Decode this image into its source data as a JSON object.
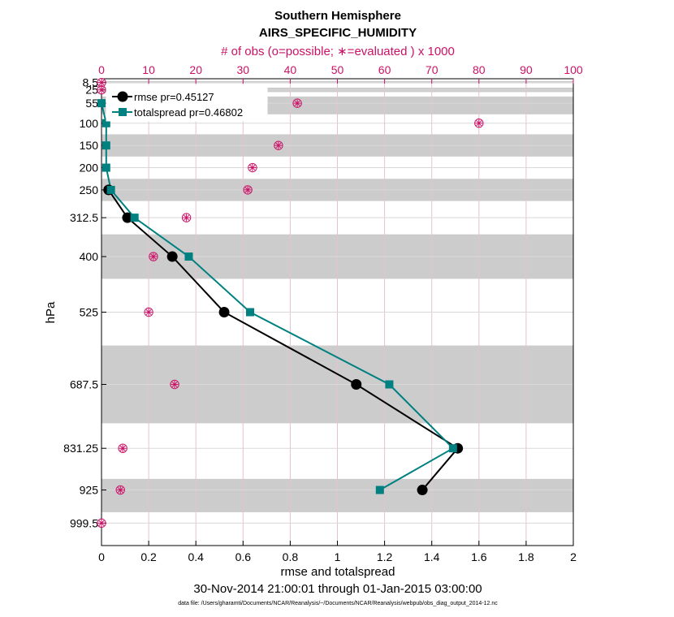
{
  "chart_data": {
    "type": "line",
    "title": "Southern Hemisphere",
    "subtitle": "AIRS_SPECIFIC_HUMIDITY",
    "top_axis_label": "# of obs (o=possible; ∗=evaluated ) x 1000",
    "xlabel": "rmse and totalspread",
    "ylabel": "hPa",
    "date_range": "30-Nov-2014 21:00:01 through 01-Jan-2015 03:00:00",
    "footer": "data file: /Users/gharamti/Documents/NCAR/Reanalysis/~/Documents/NCAR/Reanalysis/webpub/obs_diag_output_2014-12.nc",
    "xlim": [
      0,
      2
    ],
    "xticks": [
      "0",
      "0.2",
      "0.4",
      "0.6",
      "0.8",
      "1",
      "1.2",
      "1.4",
      "1.6",
      "1.8",
      "2"
    ],
    "top_xlim": [
      0,
      100
    ],
    "top_xticks": [
      "0",
      "10",
      "20",
      "30",
      "40",
      "50",
      "60",
      "70",
      "80",
      "90",
      "100"
    ],
    "ylim": [
      1050,
      0
    ],
    "levels": [
      8.5,
      25,
      55,
      100,
      150,
      200,
      250,
      312.5,
      400,
      525,
      687.5,
      831.25,
      925,
      999.5
    ],
    "level_labels": [
      "8.5",
      "25",
      "55",
      "100",
      "150",
      "200",
      "250",
      "312.5",
      "400",
      "525",
      "687.5",
      "831.25",
      "925",
      "999.5"
    ],
    "layer_bands": [
      [
        5,
        10
      ],
      [
        20,
        30
      ],
      [
        40,
        80
      ],
      [
        125,
        175
      ],
      [
        225,
        275
      ],
      [
        350,
        450
      ],
      [
        600,
        775
      ],
      [
        900,
        975
      ]
    ],
    "legend": [
      "rmse pr=0.45127",
      "totalspread pr=0.46802"
    ],
    "series": [
      {
        "name": "rmse",
        "pr": 0.45127,
        "color": "#000000",
        "marker": "circle",
        "points": [
          [
            0.03,
            250
          ],
          [
            0.11,
            312.5
          ],
          [
            0.3,
            400
          ],
          [
            0.52,
            525
          ],
          [
            1.08,
            687.5
          ],
          [
            1.51,
            831.25
          ],
          [
            1.36,
            925
          ]
        ]
      },
      {
        "name": "totalspread",
        "pr": 0.46802,
        "color": "#008080",
        "marker": "square",
        "points": [
          [
            0.0,
            55
          ],
          [
            0.02,
            100
          ],
          [
            0.02,
            150
          ],
          [
            0.02,
            200
          ],
          [
            0.04,
            250
          ],
          [
            0.14,
            312.5
          ],
          [
            0.37,
            400
          ],
          [
            0.63,
            525
          ],
          [
            1.22,
            687.5
          ],
          [
            1.49,
            831.25
          ],
          [
            1.18,
            925
          ]
        ]
      }
    ],
    "obs_counts": {
      "unit": "thousands",
      "possible": [
        [
          0,
          8.5
        ],
        [
          0,
          25
        ],
        [
          41.5,
          55
        ],
        [
          80,
          100
        ],
        [
          37.5,
          150
        ],
        [
          32,
          200
        ],
        [
          31,
          250
        ],
        [
          18,
          312.5
        ],
        [
          11,
          400
        ],
        [
          10,
          525
        ],
        [
          15.5,
          687.5
        ],
        [
          4.5,
          831.25
        ],
        [
          4,
          925
        ],
        [
          0,
          999.5
        ]
      ],
      "evaluated": [
        [
          0,
          8.5
        ],
        [
          0,
          25
        ],
        [
          41.5,
          55
        ],
        [
          80,
          100
        ],
        [
          37.5,
          150
        ],
        [
          32,
          200
        ],
        [
          31,
          250
        ],
        [
          18,
          312.5
        ],
        [
          11,
          400
        ],
        [
          10,
          525
        ],
        [
          15.5,
          687.5
        ],
        [
          4.5,
          831.25
        ],
        [
          4,
          925
        ],
        [
          0,
          999.5
        ]
      ]
    },
    "colors": {
      "rmse": "#000000",
      "totalspread": "#008080",
      "obs": "#cc1166",
      "band": "#cccccc",
      "grid_v": "#e3c3d2",
      "grid_h": "#d8d8d8"
    }
  }
}
